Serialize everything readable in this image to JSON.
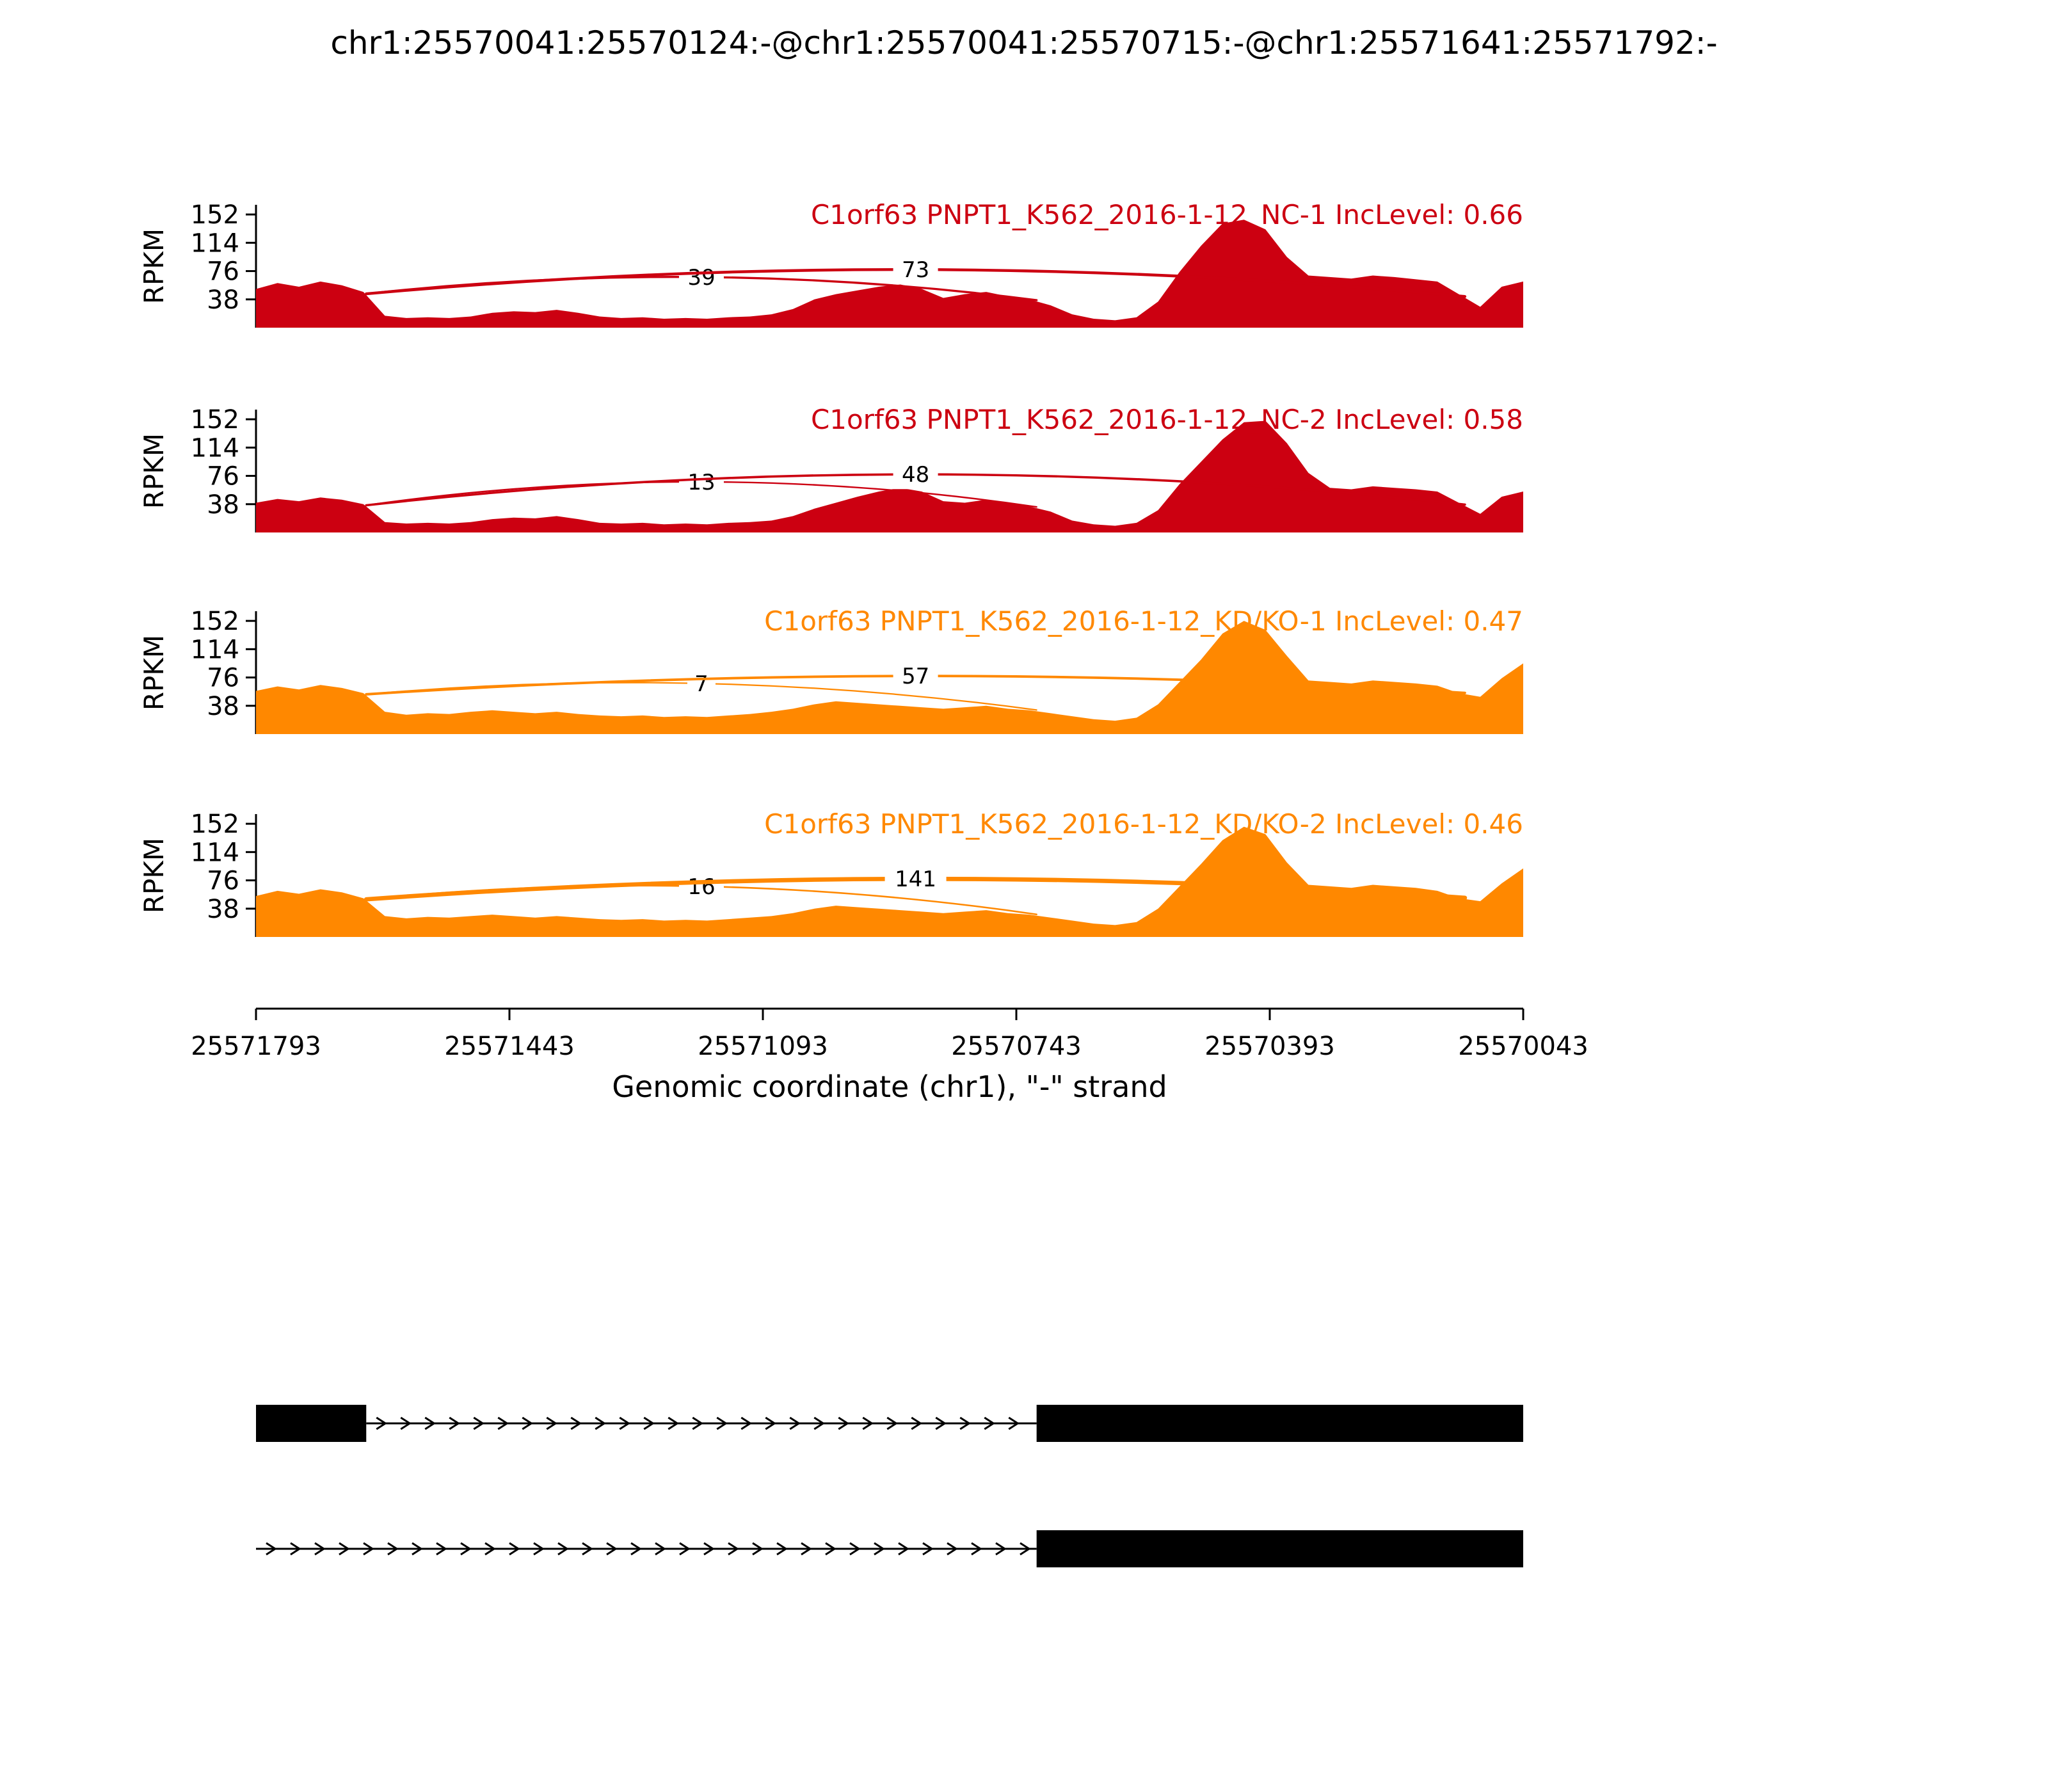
{
  "title": "chr1:25570041:25570124:-@chr1:25570041:25570715:-@chr1:25571641:25571792:-",
  "colors": {
    "nc": "#CC0011",
    "kd_ko": "#FF8800",
    "exon": "#000000",
    "axis": "#000000"
  },
  "axis": {
    "ylabel": "RPKM",
    "yticks": [
      38,
      76,
      114,
      152
    ],
    "ymax": 165,
    "xticks": [
      25571793,
      25571443,
      25571093,
      25570743,
      25570393,
      25570043
    ],
    "xlabel": "Genomic coordinate (chr1), \"-\" strand",
    "x_start": 25571793,
    "x_end": 25570043,
    "strand": "-"
  },
  "chart_data": {
    "type": "area",
    "subtype": "sashimi-plot",
    "region": "chr1:25570043-25571793",
    "tracks": [
      {
        "label": "C1orf63 PNPT1_K562_2016-1-12_NC-1 IncLevel: 0.66",
        "sample": "PNPT1_K562_2016-1-12_NC-1",
        "gene": "C1orf63",
        "inc_level": 0.66,
        "color": "#CC0011",
        "junctions": [
          {
            "from_frac": 0.087,
            "to_frac": 0.616,
            "count": 39
          },
          {
            "from_frac": 0.087,
            "to_frac": 0.954,
            "count": 73
          }
        ],
        "coverage_rpkm": [
          52,
          60,
          55,
          62,
          57,
          48,
          16,
          13,
          14,
          13,
          15,
          20,
          22,
          21,
          24,
          20,
          15,
          13,
          14,
          12,
          13,
          12,
          14,
          15,
          18,
          25,
          38,
          45,
          50,
          55,
          58,
          52,
          40,
          45,
          48,
          42,
          38,
          30,
          18,
          12,
          10,
          14,
          35,
          75,
          110,
          140,
          145,
          132,
          95,
          70,
          68,
          66,
          70,
          68,
          65,
          62,
          45,
          28,
          55,
          62
        ]
      },
      {
        "label": "C1orf63 PNPT1_K562_2016-1-12_NC-2 IncLevel: 0.58",
        "sample": "PNPT1_K562_2016-1-12_NC-2",
        "gene": "C1orf63",
        "inc_level": 0.58,
        "color": "#CC0011",
        "junctions": [
          {
            "from_frac": 0.087,
            "to_frac": 0.616,
            "count": 13
          },
          {
            "from_frac": 0.087,
            "to_frac": 0.954,
            "count": 48
          }
        ],
        "coverage_rpkm": [
          40,
          45,
          42,
          47,
          44,
          38,
          14,
          12,
          13,
          12,
          14,
          18,
          20,
          19,
          22,
          18,
          13,
          12,
          13,
          11,
          12,
          11,
          13,
          14,
          16,
          22,
          32,
          40,
          48,
          55,
          60,
          55,
          42,
          40,
          44,
          40,
          35,
          28,
          16,
          11,
          9,
          13,
          30,
          65,
          95,
          125,
          148,
          150,
          120,
          80,
          60,
          58,
          62,
          60,
          58,
          55,
          40,
          25,
          48,
          55
        ]
      },
      {
        "label": "C1orf63 PNPT1_K562_2016-1-12_KD/KO-1 IncLevel: 0.47",
        "sample": "PNPT1_K562_2016-1-12_KD/KO-1",
        "gene": "C1orf63",
        "inc_level": 0.47,
        "color": "#FF8800",
        "junctions": [
          {
            "from_frac": 0.087,
            "to_frac": 0.616,
            "count": 7
          },
          {
            "from_frac": 0.087,
            "to_frac": 0.954,
            "count": 57
          }
        ],
        "coverage_rpkm": [
          58,
          64,
          60,
          66,
          62,
          55,
          30,
          26,
          28,
          27,
          30,
          32,
          30,
          28,
          30,
          27,
          25,
          24,
          25,
          23,
          24,
          23,
          25,
          27,
          30,
          34,
          40,
          44,
          42,
          40,
          38,
          36,
          34,
          36,
          38,
          34,
          32,
          28,
          24,
          20,
          18,
          22,
          40,
          70,
          100,
          135,
          152,
          140,
          105,
          72,
          70,
          68,
          72,
          70,
          68,
          65,
          55,
          50,
          75,
          95
        ]
      },
      {
        "label": "C1orf63 PNPT1_K562_2016-1-12_KD/KO-2 IncLevel: 0.46",
        "sample": "PNPT1_K562_2016-1-12_KD/KO-2",
        "gene": "C1orf63",
        "inc_level": 0.46,
        "color": "#FF8800",
        "junctions": [
          {
            "from_frac": 0.087,
            "to_frac": 0.616,
            "count": 16
          },
          {
            "from_frac": 0.087,
            "to_frac": 0.954,
            "count": 141
          }
        ],
        "coverage_rpkm": [
          55,
          62,
          58,
          64,
          60,
          52,
          28,
          25,
          27,
          26,
          28,
          30,
          28,
          26,
          28,
          26,
          24,
          23,
          24,
          22,
          23,
          22,
          24,
          26,
          28,
          32,
          38,
          42,
          40,
          38,
          36,
          34,
          32,
          34,
          36,
          32,
          30,
          26,
          22,
          18,
          16,
          20,
          38,
          68,
          98,
          130,
          148,
          138,
          100,
          70,
          68,
          66,
          70,
          68,
          66,
          62,
          52,
          48,
          72,
          92
        ]
      }
    ],
    "transcripts": [
      {
        "exons": [
          [
            0.0,
            0.087
          ],
          [
            0.616,
            1.0
          ]
        ],
        "intron_arrows": [
          0.087,
          0.616
        ]
      },
      {
        "exons": [
          [
            0.616,
            1.0
          ]
        ],
        "intron_arrows": [
          0.0,
          0.616
        ]
      }
    ]
  }
}
